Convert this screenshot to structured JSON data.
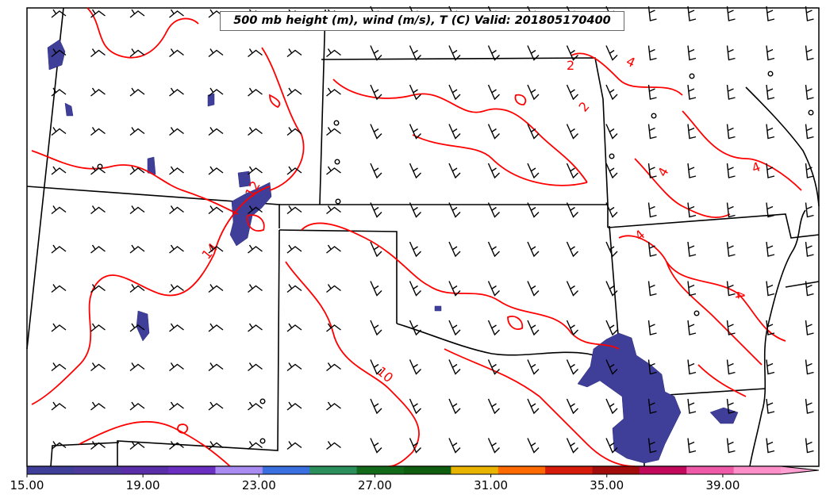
{
  "title": "500 mb height (m), wind (m/s), T (C) Valid: 201805170400",
  "contour_labels": [
    {
      "text": "2"
    },
    {
      "text": "4"
    },
    {
      "text": "2"
    },
    {
      "text": "4"
    },
    {
      "text": "4"
    },
    {
      "text": "12"
    },
    {
      "text": "14"
    },
    {
      "text": "4"
    },
    {
      "text": "4"
    },
    {
      "text": "10"
    }
  ],
  "colorbar": {
    "ticks": [
      "15.00",
      "19.00",
      "23.00",
      "27.00",
      "31.00",
      "35.00",
      "39.00"
    ],
    "colors": [
      "#3f3f9a",
      "#4e3a9c",
      "#5a2ea8",
      "#6a2ec0",
      "#a98cf2",
      "#3a6fe0",
      "#2a8f5a",
      "#136a1a",
      "#0f5e0f",
      "#e8b400",
      "#ff6a00",
      "#d61b0a",
      "#a30c0c",
      "#c2085a",
      "#ee5aa8",
      "#ff8fc8"
    ],
    "arrow_color": "#ff9fd2"
  },
  "colors": {
    "temperature_contour": "#ff0000",
    "boundary": "#000000",
    "shaded_region": "#3f3f9a"
  }
}
